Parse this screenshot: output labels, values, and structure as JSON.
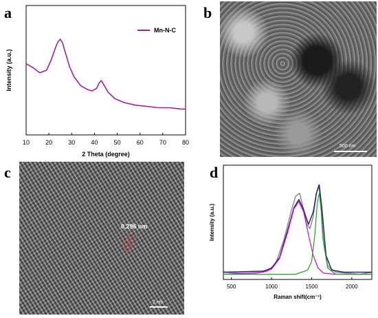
{
  "panels": {
    "a": {
      "letter": "a"
    },
    "b": {
      "letter": "b",
      "scale_label": "500 nm"
    },
    "c": {
      "letter": "c",
      "scale_label": "2 nm",
      "lattice_label": "0.296 nm"
    },
    "d": {
      "letter": "d"
    }
  },
  "chart_data": [
    {
      "type": "line",
      "panel": "a",
      "xlabel": "2 Theta (degree)",
      "ylabel": "Intensity (a.u.)",
      "xlim": [
        10,
        80
      ],
      "xticks": [
        "10",
        "20",
        "30",
        "40",
        "50",
        "60",
        "70",
        "80"
      ],
      "legend": "top-right",
      "series": [
        {
          "name": "Mn-N-C",
          "color": "#a0209a",
          "x": [
            10,
            13,
            16,
            19,
            21,
            23,
            24,
            25,
            26,
            27,
            29,
            31,
            34,
            37,
            39,
            41,
            42,
            43,
            44,
            46,
            49,
            53,
            58,
            63,
            68,
            73,
            78,
            80
          ],
          "y": [
            0.55,
            0.52,
            0.48,
            0.5,
            0.58,
            0.68,
            0.72,
            0.74,
            0.71,
            0.65,
            0.53,
            0.45,
            0.38,
            0.35,
            0.34,
            0.36,
            0.4,
            0.42,
            0.39,
            0.33,
            0.28,
            0.25,
            0.23,
            0.22,
            0.21,
            0.21,
            0.2,
            0.2
          ]
        }
      ]
    },
    {
      "type": "line",
      "panel": "d",
      "xlabel": "Raman shift(cm⁻¹)",
      "ylabel": "Intensity (a.u.)",
      "xlim": [
        400,
        2250
      ],
      "xticks": [
        "500",
        "1000",
        "1500",
        "2000"
      ],
      "series": [
        {
          "color": "#909090",
          "role": "measured",
          "x": [
            400,
            600,
            800,
            950,
            1050,
            1150,
            1250,
            1300,
            1350,
            1400,
            1440,
            1480,
            1520,
            1560,
            1590,
            1610,
            1640,
            1700,
            1800,
            1950,
            2100,
            2250
          ],
          "y": [
            0.02,
            0.01,
            0.01,
            0.03,
            0.1,
            0.32,
            0.62,
            0.75,
            0.78,
            0.62,
            0.48,
            0.44,
            0.56,
            0.78,
            0.86,
            0.72,
            0.35,
            0.08,
            0.02,
            0.01,
            0.0,
            0.02
          ]
        },
        {
          "color": "#1a1a70",
          "role": "fit",
          "x": [
            400,
            900,
            1000,
            1100,
            1200,
            1280,
            1340,
            1400,
            1460,
            1520,
            1560,
            1595,
            1630,
            1680,
            1750,
            1900,
            2250
          ],
          "y": [
            0.02,
            0.03,
            0.06,
            0.16,
            0.42,
            0.64,
            0.72,
            0.62,
            0.48,
            0.6,
            0.78,
            0.86,
            0.62,
            0.18,
            0.04,
            0.02,
            0.02
          ]
        },
        {
          "color": "#e000e0",
          "role": "D band",
          "x": [
            400,
            900,
            1000,
            1100,
            1200,
            1280,
            1340,
            1400,
            1460,
            1520,
            1580,
            1650,
            1800,
            2250
          ],
          "y": [
            0.0,
            0.02,
            0.05,
            0.15,
            0.4,
            0.63,
            0.7,
            0.6,
            0.38,
            0.18,
            0.06,
            0.01,
            0.0,
            0.0
          ]
        },
        {
          "color": "#20a020",
          "role": "G band",
          "x": [
            400,
            1300,
            1450,
            1500,
            1540,
            1570,
            1595,
            1620,
            1650,
            1700,
            1800,
            2250
          ],
          "y": [
            0.0,
            0.0,
            0.04,
            0.12,
            0.38,
            0.68,
            0.78,
            0.62,
            0.3,
            0.06,
            0.0,
            0.0
          ]
        }
      ]
    }
  ]
}
